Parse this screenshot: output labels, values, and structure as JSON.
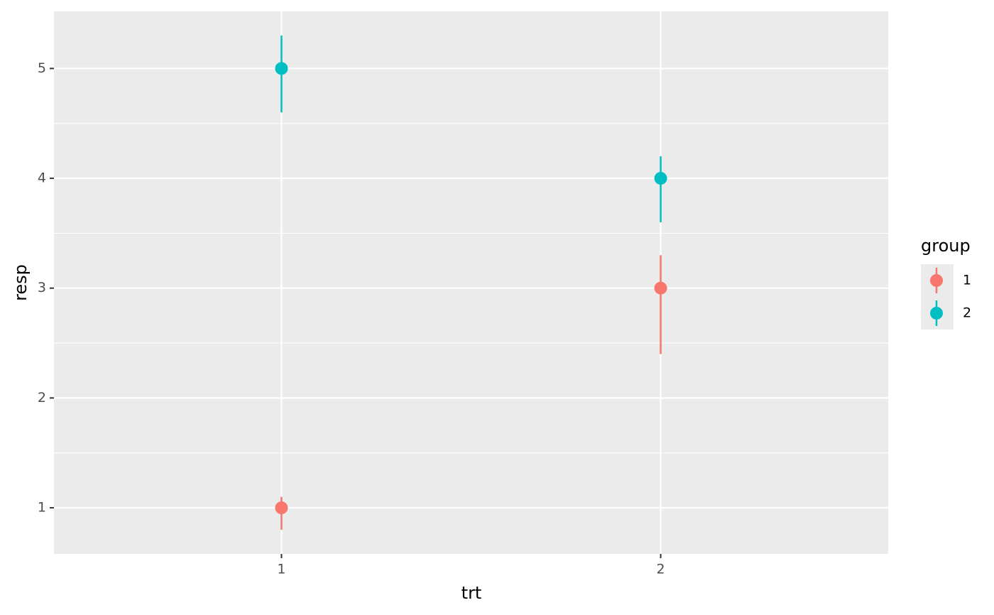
{
  "chart_data": {
    "type": "pointrange",
    "x_label": "trt",
    "y_label": "resp",
    "legend_title": "group",
    "categories": [
      "1",
      "2"
    ],
    "series": [
      {
        "name": "1",
        "color": "#F8766D",
        "values": [
          1,
          3
        ],
        "lower": [
          0.8,
          2.4
        ],
        "upper": [
          1.1,
          3.3
        ]
      },
      {
        "name": "2",
        "color": "#00BFC4",
        "values": [
          5,
          4
        ],
        "lower": [
          4.6,
          3.6
        ],
        "upper": [
          5.3,
          4.2
        ]
      }
    ],
    "ylim": [
      0.58,
      5.52
    ],
    "yticks": [
      1,
      2,
      3,
      4,
      5
    ],
    "grid": true,
    "legend": "right"
  }
}
